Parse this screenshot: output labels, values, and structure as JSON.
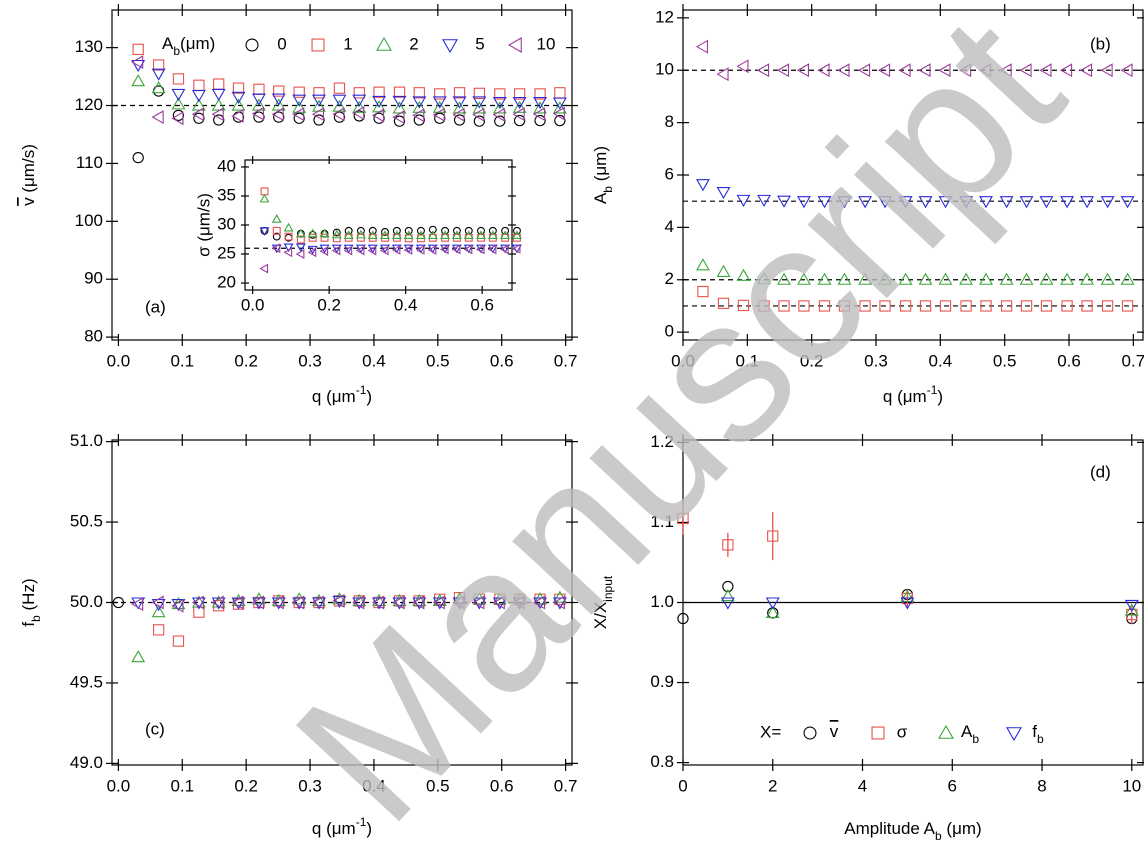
{
  "watermark": "Manuscript",
  "chart_data": [
    {
      "type": "scatter",
      "ylabel": [
        {
          "text": "v",
          "pos": "over"
        },
        " (μm/s)"
      ],
      "xlabel": [
        "q (μm",
        {
          "text": "-1",
          "pos": "sup"
        },
        ")"
      ],
      "annotation": "(a)",
      "legend": true,
      "legend_title": [
        "A",
        {
          "text": "b",
          "pos": "sub"
        },
        "(μm)"
      ],
      "xlim": [
        -0.01,
        0.71
      ],
      "ylim": [
        79.5,
        136.5
      ],
      "xticks": [
        {
          "value": 0,
          "label": "0.0"
        },
        0.1,
        0.2,
        0.3,
        0.4,
        0.5,
        0.6,
        0.7
      ],
      "yticks": [
        80,
        90,
        100,
        110,
        120,
        130
      ],
      "hlines": [
        120
      ],
      "hline_style": "dashed",
      "x": [
        0.031,
        0.063,
        0.094,
        0.126,
        0.157,
        0.188,
        0.22,
        0.251,
        0.283,
        0.314,
        0.346,
        0.377,
        0.408,
        0.44,
        0.471,
        0.503,
        0.534,
        0.565,
        0.597,
        0.628,
        0.66,
        0.691
      ],
      "series": [
        {
          "name": "0",
          "color": "#000000",
          "marker": "circle",
          "values": [
            111,
            122.5,
            118.3,
            117.8,
            117.5,
            118,
            118,
            118,
            117.8,
            117.5,
            118,
            118.2,
            117.8,
            117.3,
            117.5,
            117.8,
            117.5,
            117.3,
            117.3,
            117.4,
            117.4,
            117.4
          ]
        },
        {
          "name": "1",
          "color": "#e8524f",
          "marker": "square",
          "values": [
            129.7,
            127,
            124.6,
            123.5,
            123.7,
            123,
            122.8,
            122.5,
            122.3,
            122.2,
            123,
            122.2,
            122.3,
            122.3,
            122.2,
            122,
            122.2,
            122.1,
            122,
            122,
            122,
            122.2
          ]
        },
        {
          "name": "2",
          "color": "#3aa63a",
          "marker": "triangle-up",
          "values": [
            124.2,
            123,
            120.2,
            120,
            120,
            120,
            120,
            120,
            119.6,
            119.8,
            119.8,
            119.6,
            119.7,
            119.5,
            119.6,
            119.6,
            119.5,
            119.5,
            119.5,
            119.6,
            119.5,
            119.5
          ]
        },
        {
          "name": "5",
          "color": "#2a2ad8",
          "marker": "triangle-down",
          "values": [
            127,
            125.5,
            122,
            121.8,
            122,
            121.5,
            121.2,
            121.2,
            121,
            121,
            121,
            121,
            120.8,
            120.8,
            120.7,
            120.7,
            120.7,
            120.7,
            120.6,
            120.6,
            120.6,
            120.5
          ]
        },
        {
          "name": "10",
          "color": "#9b3c9b",
          "marker": "triangle-left",
          "values": [
            127.5,
            118,
            117.8,
            118.5,
            118.5,
            118.2,
            118.6,
            118.5,
            118.5,
            118.5,
            118.5,
            118.7,
            118.3,
            118,
            118.3,
            118.4,
            118.4,
            118.4,
            118.4,
            118.5,
            118.5,
            118.6
          ]
        }
      ]
    },
    {
      "type": "scatter",
      "ylabel": "σ (μm/s)",
      "xlim": [
        -0.02,
        0.678
      ],
      "ylim": [
        18.8,
        41.2
      ],
      "xticks": [
        {
          "value": 0,
          "label": "0.0"
        },
        0.2,
        0.4,
        0.6
      ],
      "yticks": [
        20,
        25,
        30,
        35,
        40
      ],
      "hlines": [
        26
      ],
      "hline_style": "dashed",
      "x": [
        0.031,
        0.063,
        0.094,
        0.126,
        0.157,
        0.188,
        0.22,
        0.251,
        0.283,
        0.314,
        0.346,
        0.377,
        0.408,
        0.44,
        0.471,
        0.503,
        0.534,
        0.565,
        0.597,
        0.628,
        0.66,
        0.691
      ],
      "series": [
        {
          "color": "#000000",
          "marker": "circle",
          "values": [
            29,
            28,
            27.8,
            28.5,
            28.3,
            28.5,
            28.7,
            29,
            29,
            29,
            28.8,
            29,
            29,
            29,
            29.2,
            29,
            29,
            29,
            29,
            29,
            29,
            29
          ]
        },
        {
          "color": "#e8524f",
          "marker": "square",
          "values": [
            35.8,
            29,
            28,
            27.5,
            27.8,
            27.8,
            27.7,
            27.8,
            27.8,
            27.8,
            27.8,
            27.8,
            27.7,
            27.7,
            27.8,
            27.8,
            27.8,
            27.8,
            27.8,
            27.8,
            27.8,
            27.8
          ]
        },
        {
          "color": "#3aa63a",
          "marker": "triangle-up",
          "values": [
            34.5,
            31,
            29.5,
            28.5,
            28.5,
            28.5,
            28.3,
            28.2,
            28.3,
            28.2,
            28.2,
            28.2,
            28.2,
            28.2,
            28.2,
            28.2,
            28.2,
            28.2,
            28.2,
            28.2,
            28.2,
            28.2
          ]
        },
        {
          "color": "#2a2ad8",
          "marker": "triangle-down",
          "values": [
            29,
            26,
            26.2,
            26.2,
            25.8,
            26,
            26,
            26,
            26,
            26,
            26,
            26,
            26,
            26,
            26,
            26,
            26,
            26,
            26,
            26,
            26,
            26
          ]
        },
        {
          "color": "#9b3c9b",
          "marker": "triangle-left",
          "values": [
            22.5,
            26,
            25.3,
            25,
            25.3,
            25.5,
            25.6,
            25.6,
            25.6,
            25.6,
            25.6,
            25.7,
            25.7,
            25.7,
            25.7,
            25.8,
            25.8,
            25.8,
            25.8,
            25.8,
            25.8,
            25.9
          ]
        }
      ]
    },
    {
      "type": "scatter",
      "ylabel": [
        "A",
        {
          "text": "b",
          "pos": "sub"
        },
        " (μm)"
      ],
      "xlabel": [
        "q (μm",
        {
          "text": "-1",
          "pos": "sup"
        },
        ")"
      ],
      "annotation": "(b)",
      "xlim": [
        0,
        0.715
      ],
      "ylim": [
        -0.3,
        12.3
      ],
      "xticks": [
        {
          "value": 0,
          "label": "0.0"
        },
        0.1,
        0.2,
        0.3,
        0.4,
        0.5,
        0.6,
        0.7
      ],
      "yticks": [
        0,
        2,
        4,
        6,
        8,
        10,
        12
      ],
      "hlines": [
        1,
        2,
        5,
        10
      ],
      "hline_style": "dashed",
      "x": [
        0.031,
        0.063,
        0.094,
        0.126,
        0.157,
        0.188,
        0.22,
        0.251,
        0.283,
        0.314,
        0.346,
        0.377,
        0.408,
        0.44,
        0.471,
        0.503,
        0.534,
        0.565,
        0.597,
        0.628,
        0.66,
        0.691
      ],
      "series": [
        {
          "color": "#e8524f",
          "marker": "square",
          "values": [
            1.55,
            1.1,
            1.02,
            1,
            1,
            1,
            1,
            1,
            1,
            1,
            1,
            1,
            1,
            1,
            1,
            1,
            1,
            1,
            1,
            1,
            1,
            1
          ]
        },
        {
          "color": "#3aa63a",
          "marker": "triangle-up",
          "values": [
            2.55,
            2.3,
            2.15,
            2.02,
            2,
            2,
            2,
            2,
            2,
            2,
            2,
            2,
            2,
            2,
            2,
            2,
            2,
            2,
            2,
            2,
            2,
            2
          ]
        },
        {
          "color": "#2a2ad8",
          "marker": "triangle-down",
          "values": [
            5.65,
            5.35,
            5.05,
            5.05,
            5.02,
            5,
            5,
            5,
            5,
            5,
            5,
            5,
            5,
            5,
            5,
            5,
            5,
            5,
            5,
            5,
            5,
            5
          ]
        },
        {
          "color": "#9b3c9b",
          "marker": "triangle-left",
          "values": [
            10.9,
            9.85,
            10.15,
            10,
            10,
            10,
            10,
            10,
            10,
            10,
            10,
            10,
            10,
            10,
            10,
            10,
            10,
            10,
            10,
            10,
            10,
            10
          ]
        }
      ]
    },
    {
      "type": "scatter",
      "ylabel": [
        "f",
        {
          "text": "b",
          "pos": "sub"
        },
        " (Hz)"
      ],
      "xlabel": [
        "q (μm",
        {
          "text": "-1",
          "pos": "sup"
        },
        ")"
      ],
      "annotation": "(c)",
      "xlim": [
        -0.01,
        0.71
      ],
      "ylim": [
        48.99,
        51.01
      ],
      "xticks": [
        {
          "value": 0,
          "label": "0.0"
        },
        0.1,
        0.2,
        0.3,
        0.4,
        0.5,
        0.6,
        0.7
      ],
      "yticks": [
        {
          "value": 49,
          "label": "49.0"
        },
        49.5,
        {
          "value": 50,
          "label": "50.0"
        },
        50.5,
        {
          "value": 51,
          "label": "51.0"
        }
      ],
      "hlines": [
        50
      ],
      "hline_style": "dashed",
      "x": [
        0,
        0.031,
        0.063,
        0.094,
        0.126,
        0.157,
        0.188,
        0.22,
        0.251,
        0.283,
        0.314,
        0.346,
        0.377,
        0.408,
        0.44,
        0.471,
        0.503,
        0.534,
        0.565,
        0.597,
        0.628,
        0.66,
        0.691
      ],
      "series": [
        {
          "color": "#000000",
          "marker": "circle",
          "values": [
            50,
            null,
            null,
            null,
            null,
            null,
            null,
            null,
            null,
            null,
            null,
            null,
            null,
            null,
            null,
            null,
            null,
            null,
            null,
            null,
            null,
            null,
            null
          ]
        },
        {
          "color": "#e8524f",
          "marker": "square",
          "values": [
            null,
            null,
            49.83,
            49.76,
            49.94,
            49.98,
            49.99,
            50,
            50.01,
            50,
            50,
            50.01,
            50.01,
            50,
            50.01,
            50.01,
            50.02,
            50.03,
            50.02,
            50.02,
            50.02,
            50.02,
            50.02
          ]
        },
        {
          "color": "#3aa63a",
          "marker": "triangle-up",
          "values": [
            null,
            49.66,
            49.94,
            49.99,
            50,
            50,
            50.01,
            50.02,
            50.01,
            50.02,
            50.01,
            50.02,
            50.01,
            50.01,
            50.01,
            50.01,
            50.01,
            50.02,
            50.02,
            50.02,
            50.02,
            50.02,
            50.03
          ]
        },
        {
          "color": "#2a2ad8",
          "marker": "triangle-down",
          "values": [
            null,
            50,
            49.99,
            49.99,
            50,
            50,
            50,
            50,
            50,
            50,
            50,
            50.01,
            50,
            50,
            50,
            50,
            50,
            50,
            50,
            50,
            50,
            50,
            50
          ]
        },
        {
          "color": "#9b3c9b",
          "marker": "triangle-left",
          "values": [
            null,
            49.99,
            50,
            49.98,
            50,
            50,
            50,
            50,
            50,
            50,
            50,
            50.01,
            50,
            50,
            50,
            50,
            50,
            50,
            50,
            50,
            50,
            50,
            50
          ]
        }
      ]
    },
    {
      "type": "scatter",
      "ylabel": [
        "X/X",
        {
          "text": "input",
          "pos": "sub"
        }
      ],
      "xlabel": [
        "Amplitude A",
        {
          "text": "b",
          "pos": "sub"
        },
        " (μm)"
      ],
      "annotation": "(d)",
      "legend": true,
      "legend_title": "X=",
      "xlim": [
        0,
        10.25
      ],
      "ylim": [
        0.797,
        1.203
      ],
      "xticks": [
        0,
        2,
        4,
        6,
        8,
        10
      ],
      "yticks": [
        0.8,
        0.9,
        {
          "value": 1,
          "label": "1.0"
        },
        1.1,
        1.2
      ],
      "hlines": [
        1
      ],
      "hline_style": "solid",
      "x": [
        0,
        1,
        2,
        5,
        10
      ],
      "series": [
        {
          "name": [
            {
              "text": "v",
              "pos": "over"
            }
          ],
          "color": "#000000",
          "marker": "circle",
          "values": [
            0.98,
            1.02,
            0.987,
            1.01,
            0.98
          ]
        },
        {
          "name": "σ",
          "color": "#e8524f",
          "marker": "square",
          "values": [
            1.105,
            1.072,
            1.083,
            1.005,
            0.985
          ],
          "errors": [
            0.02,
            0.015,
            0.03,
            0.012,
            0.012
          ]
        },
        {
          "name": [
            "A",
            {
              "text": "b",
              "pos": "sub"
            }
          ],
          "color": "#3aa63a",
          "marker": "triangle-up",
          "values": [
            null,
            1.008,
            0.987,
            1.007,
            0.99
          ]
        },
        {
          "name": [
            "f",
            {
              "text": "b",
              "pos": "sub"
            }
          ],
          "color": "#2a2ad8",
          "marker": "triangle-down",
          "values": [
            null,
            1,
            1,
            1,
            0.997
          ]
        }
      ]
    }
  ]
}
